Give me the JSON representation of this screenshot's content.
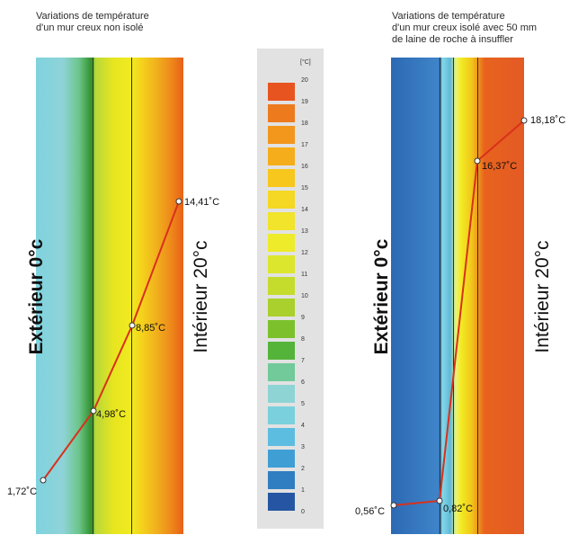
{
  "captions": {
    "left": [
      "Variations de température",
      "d'un mur creux non isolé"
    ],
    "right": [
      "Variations de température",
      "d'un mur creux isolé avec 50 mm",
      "de laine de roche à insuffler"
    ]
  },
  "side_labels": {
    "exterior": "Extérieur 0°c",
    "interior": "Intérieur 20°c"
  },
  "legend": {
    "unit": "[°C]",
    "ticks": [
      "20",
      "19",
      "18",
      "17",
      "16",
      "15",
      "14",
      "13",
      "12",
      "11",
      "10",
      "9",
      "8",
      "7",
      "6",
      "5",
      "4",
      "3",
      "2",
      "1",
      "0"
    ],
    "colors": [
      "#e8541f",
      "#ee7a1e",
      "#f2961c",
      "#f6ad1b",
      "#f7c71d",
      "#f4d823",
      "#f1e42a",
      "#eeeb2a",
      "#dce62d",
      "#c5dc2d",
      "#a9d02c",
      "#7cc12c",
      "#54b43a",
      "#72c99a",
      "#8ed4d5",
      "#7ad0dc",
      "#5cbde0",
      "#3f9fd5",
      "#2f7ec2",
      "#2656a3",
      "#23357e"
    ]
  },
  "profiles": {
    "uninsulated": [
      {
        "label": "1,72˚C",
        "temp": 1.72
      },
      {
        "label": "4,98˚C",
        "temp": 4.98
      },
      {
        "label": "8,85˚C",
        "temp": 8.85
      },
      {
        "label": "14,41˚C",
        "temp": 14.41
      }
    ],
    "insulated": [
      {
        "label": "0,56˚C",
        "temp": 0.56
      },
      {
        "label": "0,82˚C",
        "temp": 0.82
      },
      {
        "label": "16,37˚C",
        "temp": 16.37
      },
      {
        "label": "18,18˚C",
        "temp": 18.18
      }
    ]
  },
  "colors": {
    "profile_line": "#d9301c",
    "marker_fill": "#ffffff",
    "wall_edge": "#2e2e2e"
  }
}
